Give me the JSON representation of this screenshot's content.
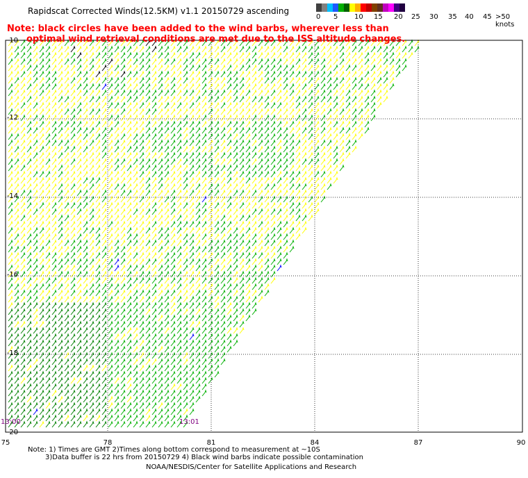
{
  "title": "Rapidscat Corrected Winds(12.5KM) v1.1 20150729 ascending",
  "note_line1": "Note: black circles have been added to the wind barbs, wherever less than",
  "note_line2": "optimal wind retrieval conditions are met due to the ISS altitude changes.",
  "legend": {
    "labels": [
      "0",
      "5",
      "10",
      "15",
      "20",
      "25",
      "30",
      "35",
      "40",
      "45",
      ">50 knots"
    ],
    "colors": [
      "#404040",
      "#808080",
      "#00bfff",
      "#1e5aff",
      "#00b000",
      "#006000",
      "#ffff00",
      "#ffb000",
      "#ff0000",
      "#c00000",
      "#804000",
      "#603020",
      "#c000c0",
      "#ff00ff",
      "#400080",
      "#200040"
    ]
  },
  "axes": {
    "lon_labels": [
      "75",
      "78",
      "81",
      "84",
      "87",
      "90"
    ],
    "lat_labels": [
      "-10",
      "-12",
      "-14",
      "-16",
      "-18",
      "-20"
    ]
  },
  "times": {
    "left": "13:00",
    "right": "13:01"
  },
  "footer": {
    "line1": "Note: 1) Times are GMT 2)Times along bottom correspond to measurement at ~10S",
    "line2": "3)Data buffer is 22 hrs from 20150729 4) Black wind barbs indicate possible contamination",
    "credit": "NOAA/NESDIS/Center for Satellite Applications and Research"
  },
  "colors": {
    "yellow": "#ffff00",
    "green": "#00b000",
    "dark_green": "#008000",
    "black": "#000000",
    "blue": "#0000ff",
    "grid": "#000000"
  }
}
